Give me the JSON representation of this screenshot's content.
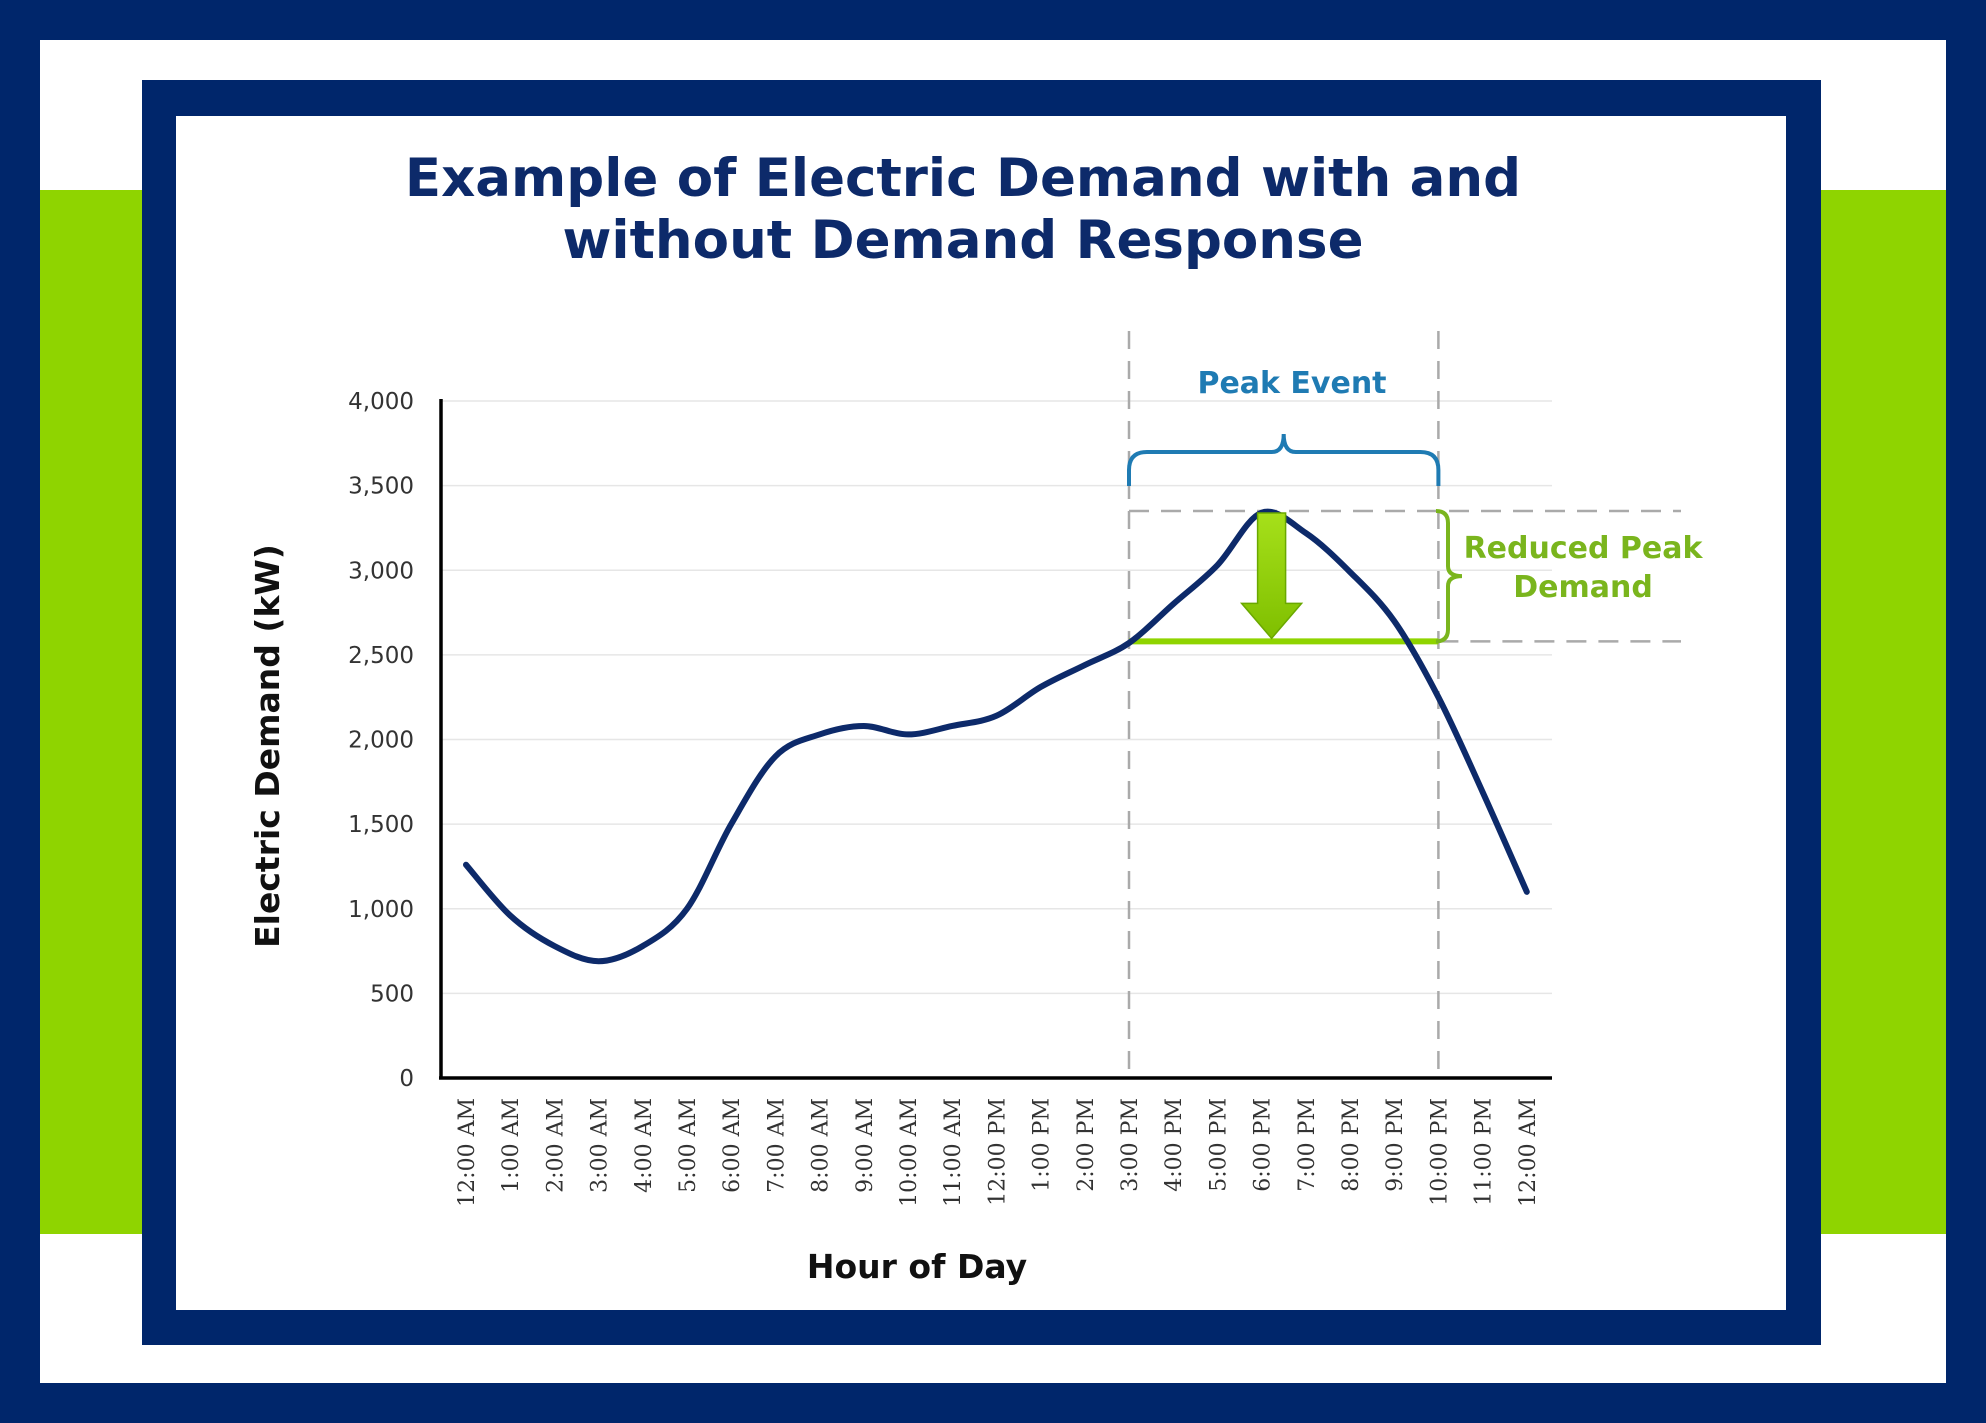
{
  "colors": {
    "frame": "#00266b",
    "accent": "#8fd400",
    "line": "#0d2a6a",
    "peak_event": "#1f7bb3",
    "reduced": "#7ab51d",
    "arrow": "#8fd400",
    "grid": "#e6e6e6",
    "guides": "#aaaaaa"
  },
  "chart_data": {
    "type": "line",
    "title": "Example of Electric Demand with and without Demand Response",
    "title_lines": [
      "Example of Electric Demand with and",
      "without Demand Response"
    ],
    "xlabel": "Hour of Day",
    "ylabel": "Electric Demand (kW)",
    "ylim": [
      0,
      4000
    ],
    "yticks": [
      0,
      500,
      1000,
      1500,
      2000,
      2500,
      3000,
      3500,
      4000
    ],
    "ytick_labels": [
      "0",
      "500",
      "1,000",
      "1,500",
      "2,000",
      "2,500",
      "3,000",
      "3,500",
      "4,000"
    ],
    "grid": true,
    "categories": [
      "12:00 AM",
      "1:00 AM",
      "2:00 AM",
      "3:00 AM",
      "4:00 AM",
      "5:00 AM",
      "6:00 AM",
      "7:00 AM",
      "8:00 AM",
      "9:00 AM",
      "10:00 AM",
      "11:00 AM",
      "12:00 PM",
      "1:00 PM",
      "2:00 PM",
      "3:00 PM",
      "4:00 PM",
      "5:00 PM",
      "6:00 PM",
      "7:00 PM",
      "8:00 PM",
      "9:00 PM",
      "10:00 PM",
      "11:00 PM",
      "12:00 AM"
    ],
    "series": [
      {
        "values": [
          1260,
          960,
          780,
          690,
          780,
          1000,
          1500,
          1900,
          2030,
          2080,
          2030,
          2080,
          2140,
          2310,
          2440,
          2570,
          2800,
          3030,
          3340,
          3220,
          2990,
          2700,
          2250,
          1690,
          1100
        ]
      }
    ],
    "annotations": {
      "peak_event": {
        "label": "Peak Event",
        "start": "3:00 PM",
        "end": "10:00 PM"
      },
      "reduced_peak": {
        "label_lines": [
          "Reduced Peak",
          "Demand"
        ],
        "from_value": 3350,
        "to_value": 2580
      }
    }
  }
}
